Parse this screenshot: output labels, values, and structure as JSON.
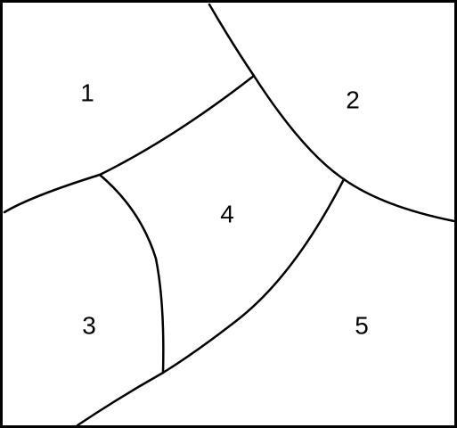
{
  "diagram": {
    "stroke_color": "#000000",
    "background_color": "#ffffff",
    "regions": [
      {
        "id": "1",
        "label": "1"
      },
      {
        "id": "2",
        "label": "2"
      },
      {
        "id": "3",
        "label": "3"
      },
      {
        "id": "4",
        "label": "4"
      },
      {
        "id": "5",
        "label": "5"
      }
    ]
  }
}
